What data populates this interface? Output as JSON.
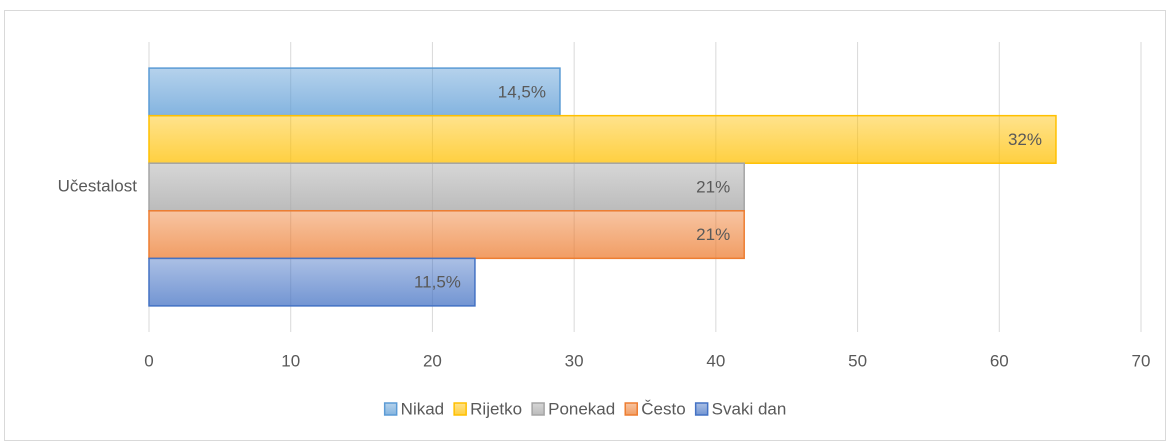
{
  "chart_data": {
    "type": "hbar",
    "categories": [
      "Učestalost"
    ],
    "series": [
      {
        "name": "Nikad",
        "color": "#5b9bd5",
        "values": [
          29
        ],
        "value_labels": [
          "14,5%"
        ]
      },
      {
        "name": "Rijetko",
        "color": "#ffc000",
        "values": [
          64
        ],
        "value_labels": [
          "32%"
        ]
      },
      {
        "name": "Ponekad",
        "color": "#a5a5a5",
        "values": [
          42
        ],
        "value_labels": [
          "21%"
        ]
      },
      {
        "name": "Često",
        "color": "#ed7d31",
        "values": [
          42
        ],
        "value_labels": [
          "21%"
        ]
      },
      {
        "name": "Svaki dan",
        "color": "#4472c4",
        "values": [
          23
        ],
        "value_labels": [
          "11,5%"
        ]
      }
    ],
    "xlim": [
      0,
      70
    ],
    "xticks": [
      0,
      10,
      20,
      30,
      40,
      50,
      60,
      70
    ],
    "grid": true,
    "legend": "bottom"
  }
}
